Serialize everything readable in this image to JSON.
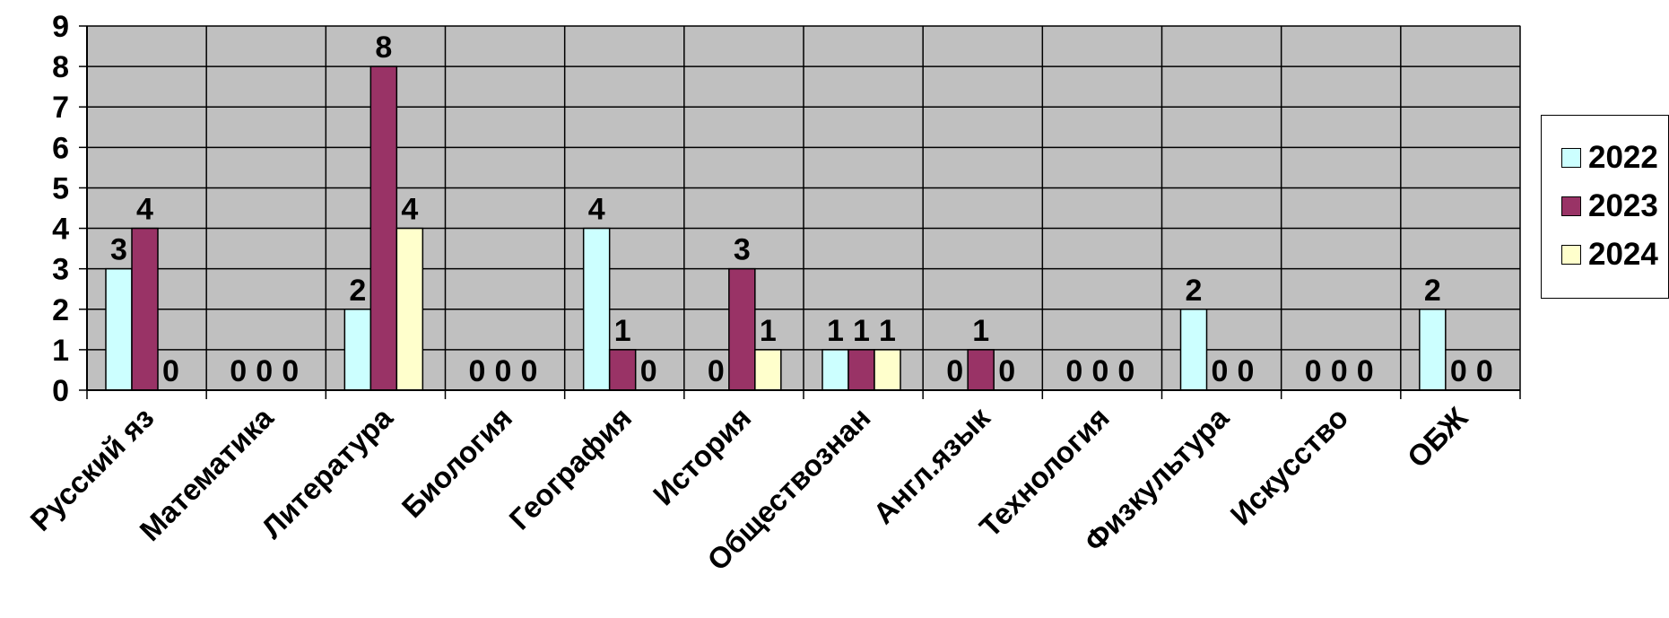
{
  "chart_data": {
    "type": "bar",
    "title": "",
    "xlabel": "",
    "ylabel": "",
    "ylim": [
      0,
      9
    ],
    "yticks": [
      0,
      1,
      2,
      3,
      4,
      5,
      6,
      7,
      8,
      9
    ],
    "grid": true,
    "legend_position": "right",
    "categories": [
      "Русский яз",
      "Математика",
      "Литература",
      "Биология",
      "География",
      "История",
      "Обществознан",
      "Англ.язык",
      "Технология",
      "Физкультура",
      "Искусство",
      "ОБЖ"
    ],
    "series": [
      {
        "name": "2022",
        "color": "#ccffff",
        "values": [
          3,
          0,
          2,
          0,
          4,
          0,
          1,
          0,
          0,
          2,
          0,
          2
        ]
      },
      {
        "name": "2023",
        "color": "#993366",
        "values": [
          4,
          0,
          8,
          0,
          1,
          3,
          1,
          1,
          0,
          0,
          0,
          0
        ]
      },
      {
        "name": "2024",
        "color": "#ffffcc",
        "values": [
          0,
          0,
          4,
          0,
          0,
          1,
          1,
          0,
          0,
          0,
          0,
          0
        ]
      }
    ],
    "plot_background": "#c0c0c0"
  }
}
